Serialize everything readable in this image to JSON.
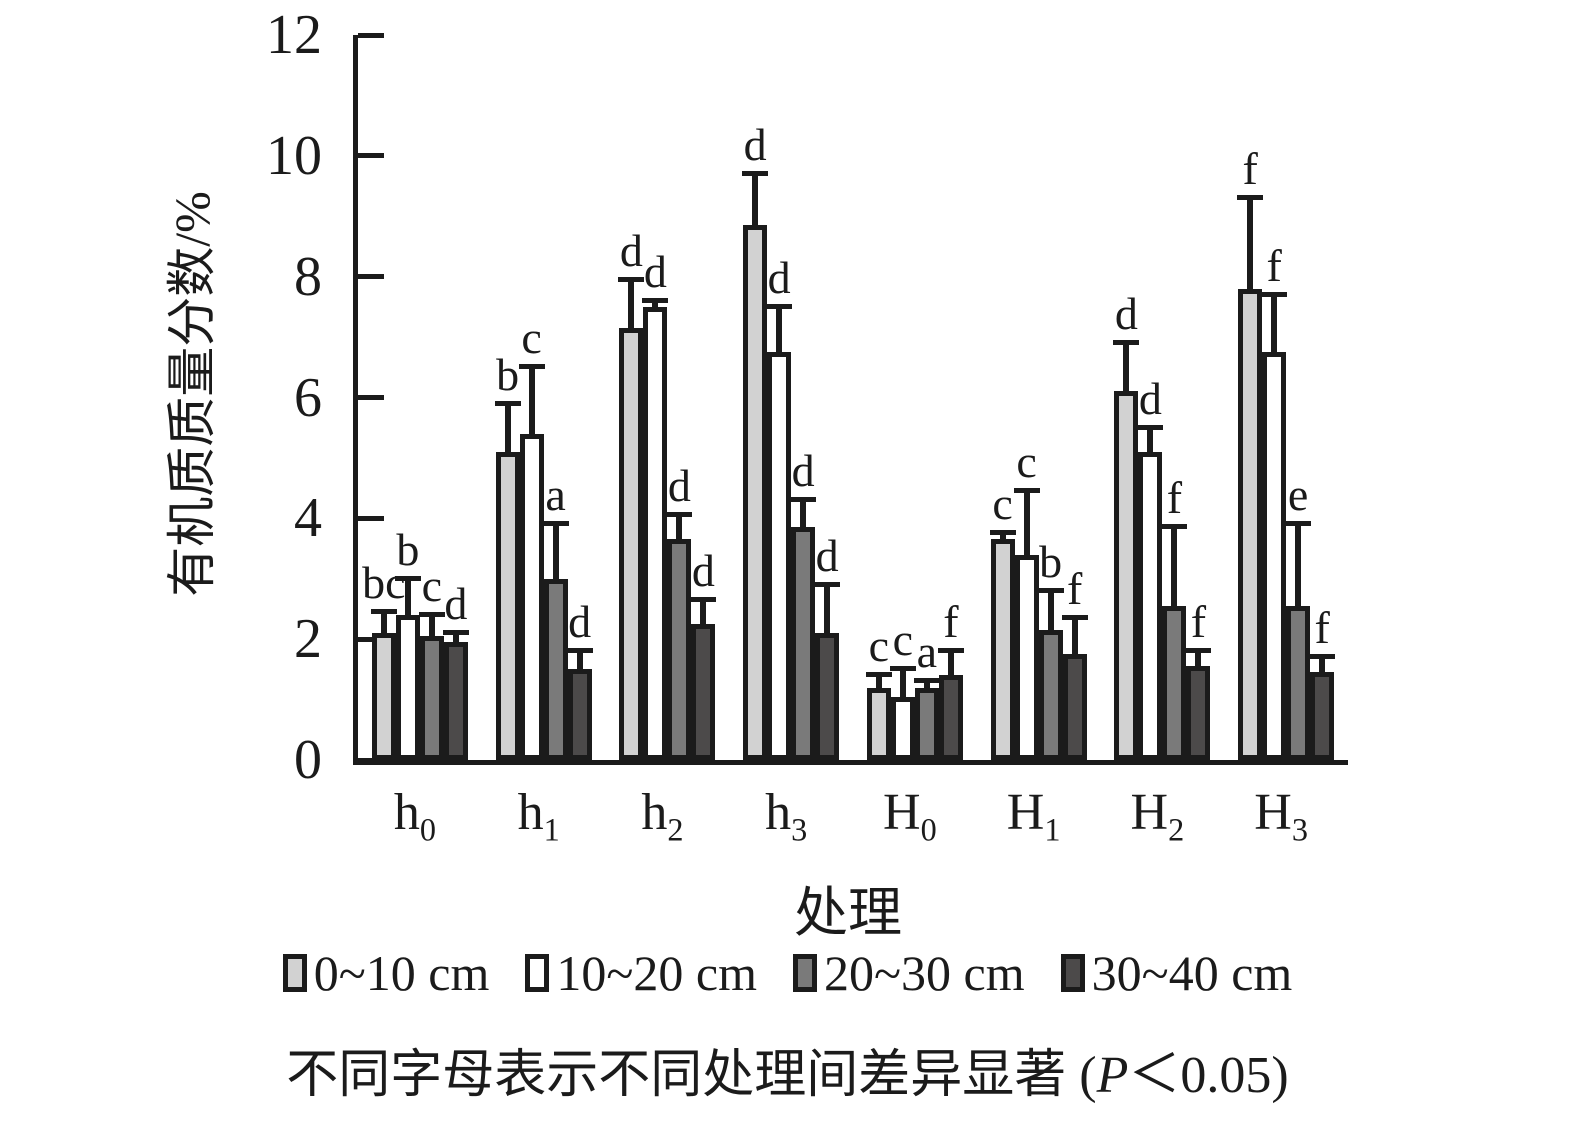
{
  "figure": {
    "caption": {
      "pre": "不同字母表示不同处理间差异显著 (",
      "italic": "P",
      "post": "＜0.05)"
    }
  },
  "chart_data": {
    "type": "bar",
    "title": "",
    "ylabel": "有机质质量分数/%",
    "xlabel": "处理",
    "ylim": [
      0,
      12
    ],
    "yticks": [
      0,
      2,
      4,
      6,
      8,
      10,
      12
    ],
    "grid": false,
    "legend_position": "bottom",
    "error_bars": "upper-only",
    "ink_color": "#1b1b1b",
    "categories": [
      "h0",
      "h1",
      "h2",
      "h3",
      "H0",
      "H1",
      "H2",
      "H3"
    ],
    "category_labels": [
      {
        "base": "h",
        "sub": "0"
      },
      {
        "base": "h",
        "sub": "1"
      },
      {
        "base": "h",
        "sub": "2"
      },
      {
        "base": "h",
        "sub": "3"
      },
      {
        "base": "H",
        "sub": "0"
      },
      {
        "base": "H",
        "sub": "1"
      },
      {
        "base": "H",
        "sub": "2"
      },
      {
        "base": "H",
        "sub": "3"
      }
    ],
    "series": [
      {
        "name": "0~10 cm",
        "color": "#d2d2d2",
        "values": [
          2.1,
          5.1,
          7.15,
          8.85,
          1.2,
          3.65,
          6.1,
          7.8
        ],
        "errors_upper": [
          0.35,
          0.8,
          0.8,
          0.85,
          0.2,
          0.1,
          0.8,
          1.5
        ],
        "sig_letters": [
          "bc",
          "b",
          "d",
          "d",
          "c",
          "c",
          "d",
          "f"
        ]
      },
      {
        "name": "10~20 cm",
        "color": "#ffffff",
        "values": [
          2.4,
          5.4,
          7.5,
          6.75,
          1.05,
          3.4,
          5.1,
          6.75
        ],
        "errors_upper": [
          0.6,
          1.1,
          0.1,
          0.75,
          0.45,
          1.05,
          0.4,
          0.95
        ],
        "sig_letters": [
          "b",
          "c",
          "d",
          "d",
          "c",
          "c",
          "d",
          "f"
        ]
      },
      {
        "name": "20~30 cm",
        "color": "#7a7a7a",
        "values": [
          2.05,
          3.0,
          3.65,
          3.85,
          1.2,
          2.15,
          2.55,
          2.55
        ],
        "errors_upper": [
          0.35,
          0.9,
          0.4,
          0.45,
          0.1,
          0.65,
          1.3,
          1.35
        ],
        "sig_letters": [
          "c",
          "a",
          "d",
          "d",
          "a",
          "b",
          "f",
          "e"
        ]
      },
      {
        "name": "30~40 cm",
        "color": "#4c4a4a",
        "values": [
          1.95,
          1.5,
          2.25,
          2.1,
          1.4,
          1.75,
          1.55,
          1.45
        ],
        "errors_upper": [
          0.15,
          0.3,
          0.4,
          0.8,
          0.4,
          0.6,
          0.25,
          0.25
        ],
        "sig_letters": [
          "d",
          "d",
          "d",
          "d",
          "f",
          "f",
          "f",
          "f"
        ]
      }
    ]
  }
}
